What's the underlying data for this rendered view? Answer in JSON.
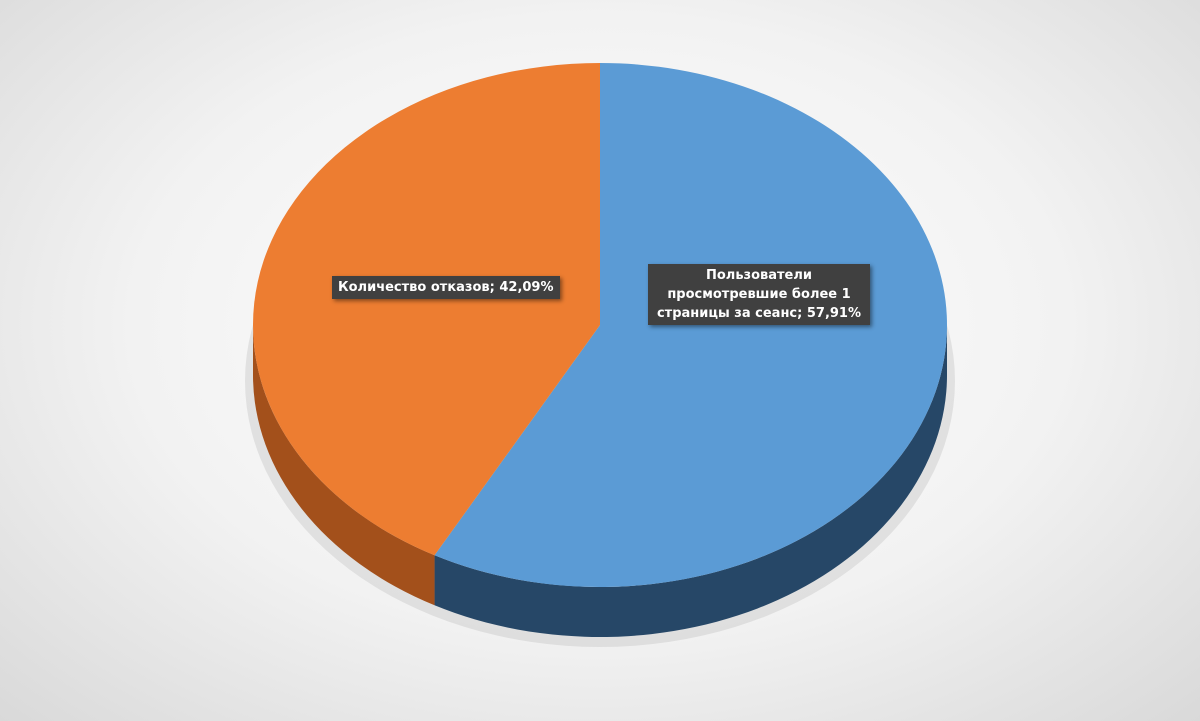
{
  "chart_data": {
    "type": "pie",
    "style": "3d",
    "start": "top",
    "direction": "clockwise",
    "series": [
      {
        "name": "Пользователи просмотревшие более 1 страницы за сеанс",
        "value": 57.91,
        "label": "Пользователи просмотревшие более 1 страницы за сеанс; 57,91%",
        "color": "#5b9bd5",
        "side_color": "#264767"
      },
      {
        "name": "Количество отказов",
        "value": 42.09,
        "label": "Количество отказов; 42,09%",
        "color": "#ed7d31",
        "side_color": "#a3501b"
      }
    ]
  }
}
